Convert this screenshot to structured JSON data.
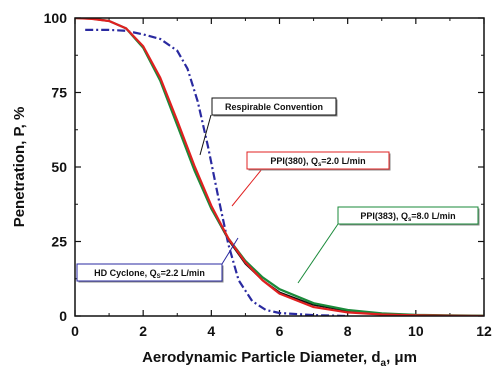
{
  "chart_data": {
    "type": "line",
    "xlabel": "Aerodynamic Particle Diameter, d",
    "xlabel_sub": "a",
    "xlabel_unit": ", μm",
    "ylabel": "Penetration, P, %",
    "xlim": [
      0,
      12
    ],
    "ylim": [
      0,
      100
    ],
    "x_ticks": [
      "0",
      "2",
      "4",
      "6",
      "8",
      "10",
      "12"
    ],
    "y_ticks": [
      "0",
      "25",
      "50",
      "75",
      "100"
    ],
    "grid": false,
    "series": [
      {
        "name": "Respirable Convention",
        "color": "#111111",
        "dash": "none",
        "x": [
          0,
          0.5,
          1,
          1.5,
          2,
          2.5,
          3,
          3.5,
          4,
          4.5,
          5,
          5.5,
          6,
          7,
          8,
          9,
          10,
          11,
          12
        ],
        "y": [
          100,
          99.8,
          99,
          96.5,
          90,
          79,
          64,
          49,
          36,
          25.5,
          17.5,
          12,
          8,
          3.7,
          1.7,
          0.8,
          0.4,
          0.2,
          0.1
        ]
      },
      {
        "name": "PPI(380), Q",
        "name_sub": "s",
        "name_rest": "=2.0 L/min",
        "color": "#e02020",
        "dash": "none",
        "x": [
          0,
          0.5,
          1,
          1.5,
          2,
          2.5,
          3,
          3.5,
          4,
          4.5,
          5,
          5.5,
          6,
          7,
          8,
          9,
          10,
          11,
          12
        ],
        "y": [
          100,
          99.7,
          99,
          96.5,
          90.5,
          80,
          65.5,
          50.5,
          37,
          26,
          18,
          12,
          7.5,
          3,
          1.2,
          0.5,
          0.2,
          0.1,
          0
        ]
      },
      {
        "name": "PPI(383), Q",
        "name_sub": "s",
        "name_rest": "=8.0 L/min",
        "color": "#1a8a3a",
        "dash": "none",
        "x": [
          0,
          0.5,
          1,
          1.5,
          2,
          2.5,
          3,
          3.5,
          4,
          4.5,
          5,
          5.5,
          6,
          7,
          8,
          9,
          10,
          11,
          12
        ],
        "y": [
          100,
          99.8,
          99,
          96.5,
          90,
          79,
          64,
          49,
          36,
          26,
          18.5,
          13,
          9,
          4.3,
          2,
          0.9,
          0.4,
          0.2,
          0.1
        ]
      },
      {
        "name": "HD Cyclone, Q",
        "name_sub": "S",
        "name_rest": "=2.2 L/min",
        "color": "#2a2aa0",
        "dash": "8,3,2,3",
        "x": [
          0.3,
          1,
          1.5,
          2,
          2.5,
          3,
          3.3,
          3.6,
          3.9,
          4.2,
          4.5,
          4.8,
          5.2,
          5.6,
          6,
          7,
          8
        ],
        "y": [
          96,
          96,
          95.7,
          94.5,
          93,
          89,
          83,
          72,
          57,
          40,
          24,
          12,
          5,
          2,
          1,
          0.3,
          0
        ]
      }
    ],
    "annotations": [
      {
        "text": "Respirable Convention",
        "series": 0,
        "color": "#111111"
      },
      {
        "text": "PPI(380), Q",
        "sub": "s",
        "rest": "=2.0 L/min",
        "series": 1,
        "color": "#e02020"
      },
      {
        "text": "PPI(383), Q",
        "sub": "s",
        "rest": "=8.0 L/min",
        "series": 2,
        "color": "#1a8a3a"
      },
      {
        "text": "HD Cyclone, Q",
        "sub": "S",
        "rest": "=2.2 L/min",
        "series": 3,
        "color": "#2a2aa0"
      }
    ]
  }
}
